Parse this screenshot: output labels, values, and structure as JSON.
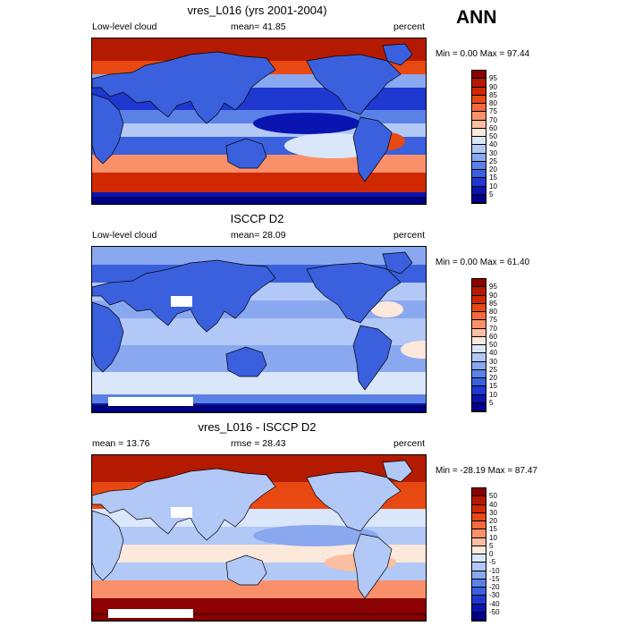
{
  "season": "ANN",
  "panels": [
    {
      "title": "vres_L016 (yrs 2001-2004)",
      "left_label": "Low-level cloud",
      "center_label": "mean=  41.85",
      "right_label": "percent",
      "minmax": "Min =   0.00 Max =  97.44",
      "map_kind": "model"
    },
    {
      "title": "ISCCP D2",
      "left_label": "Low-level cloud",
      "center_label": "mean=  28.09",
      "right_label": "percent",
      "minmax": "Min =   0.00 Max =  61.40",
      "map_kind": "obs"
    },
    {
      "title": "vres_L016 - ISCCP D2",
      "left_label": "mean =  13.76",
      "center_label": "rmse =  28.43",
      "right_label": "percent",
      "minmax": "Min = -28.19 Max =  87.47",
      "map_kind": "diff"
    }
  ],
  "colorbar_levels": [
    "95",
    "90",
    "85",
    "80",
    "75",
    "70",
    "60",
    "50",
    "40",
    "30",
    "25",
    "20",
    "15",
    "10",
    "5"
  ],
  "colorbar_diff_levels": [
    "50",
    "40",
    "30",
    "20",
    "15",
    "10",
    "5",
    "0",
    "-5",
    "-10",
    "-15",
    "-20",
    "-30",
    "-40",
    "-50"
  ],
  "colorbar_colors": [
    "#8b0000",
    "#b41a00",
    "#d02800",
    "#e84812",
    "#f46a3a",
    "#fa906a",
    "#fcbea0",
    "#fde8dc",
    "#dae6fa",
    "#b2c8f6",
    "#8aa8f0",
    "#5a82e6",
    "#3a60de",
    "#1e38d0",
    "#0a14b0",
    "#00008a"
  ],
  "colors": {
    "ocean_model_mid": "#2e5ad8",
    "ocean_model_pole": "#c82800",
    "land_model": "#2850d8",
    "ocean_obs": "#a8c0f2",
    "land_obs": "#2c50d4",
    "diff_high": "#c02a00",
    "diff_low": "#e0e8fb",
    "coast": "#000000"
  }
}
